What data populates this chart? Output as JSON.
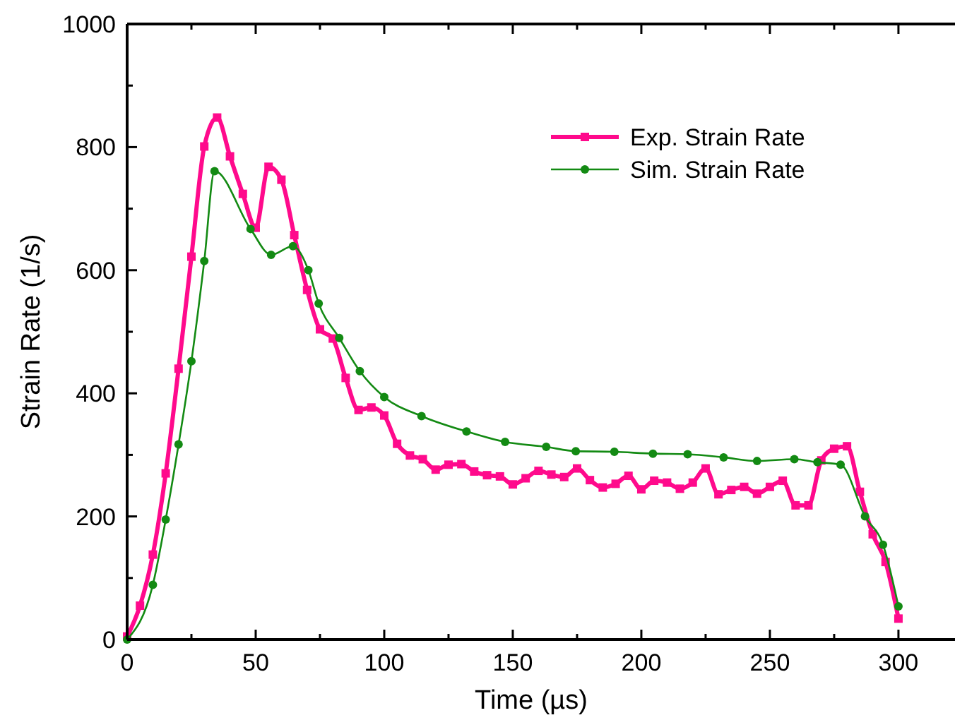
{
  "chart_data": {
    "type": "line",
    "xlabel": "Time (µs)",
    "ylabel": "Strain Rate (1/s)",
    "xlim": [
      0,
      322
    ],
    "ylim": [
      0,
      1000
    ],
    "xticks": [
      0,
      {
        "value": 25,
        "label": null
      },
      50,
      {
        "value": 75,
        "label": null
      },
      100,
      {
        "value": 125,
        "label": null
      },
      150,
      {
        "value": 175,
        "label": null
      },
      200,
      {
        "value": 225,
        "label": null
      },
      250,
      {
        "value": 275,
        "label": null
      },
      300
    ],
    "yticks": [
      0,
      {
        "value": 100,
        "label": null
      },
      200,
      {
        "value": 300,
        "label": null
      },
      400,
      {
        "value": 500,
        "label": null
      },
      600,
      {
        "value": 700,
        "label": null
      },
      800,
      {
        "value": 900,
        "label": null
      },
      1000
    ],
    "grid": false,
    "legend": "top right",
    "series": [
      {
        "name": "Exp. Strain Rate",
        "color": "#ff0a8c",
        "marker": "square",
        "x": [
          0,
          5,
          10,
          15,
          20,
          25,
          30,
          35,
          40,
          45,
          50,
          55,
          60,
          65,
          70,
          75,
          80,
          85,
          90,
          95,
          100,
          105,
          110,
          115,
          120,
          125,
          130,
          135,
          140,
          145,
          150,
          155,
          160,
          165,
          170,
          175,
          180,
          185,
          190,
          195,
          200,
          205,
          210,
          215,
          220,
          225,
          230,
          235,
          240,
          245,
          250,
          255,
          260,
          265,
          270,
          275,
          280,
          285,
          290,
          295,
          300
        ],
        "values": [
          5,
          55,
          138,
          270,
          440,
          622,
          801,
          848,
          785,
          724,
          669,
          768,
          747,
          657,
          568,
          504,
          489,
          425,
          373,
          377,
          364,
          318,
          299,
          293,
          276,
          284,
          285,
          273,
          267,
          265,
          252,
          262,
          274,
          268,
          264,
          278,
          259,
          247,
          253,
          266,
          244,
          258,
          255,
          245,
          255,
          278,
          236,
          243,
          248,
          237,
          248,
          258,
          218,
          218,
          291,
          310,
          314,
          240,
          171,
          126,
          34
        ]
      },
      {
        "name": "Sim. Strain Rate",
        "color": "#138a13",
        "marker": "circle",
        "x": [
          0,
          10,
          15,
          20,
          25,
          30,
          34,
          48,
          56,
          64.5,
          70.5,
          74.5,
          82.5,
          90.5,
          100,
          114.5,
          132,
          147,
          163,
          174.5,
          189.5,
          204.5,
          218,
          232,
          245,
          259.5,
          268.5,
          277.5,
          287,
          294,
          300
        ],
        "values": [
          0,
          89,
          195,
          317,
          452,
          615,
          761,
          667,
          625,
          639,
          600,
          546,
          490,
          436,
          394,
          363,
          338,
          321,
          313,
          306,
          305,
          302,
          301,
          296,
          290,
          293,
          288,
          284,
          200,
          154,
          54
        ]
      }
    ]
  }
}
